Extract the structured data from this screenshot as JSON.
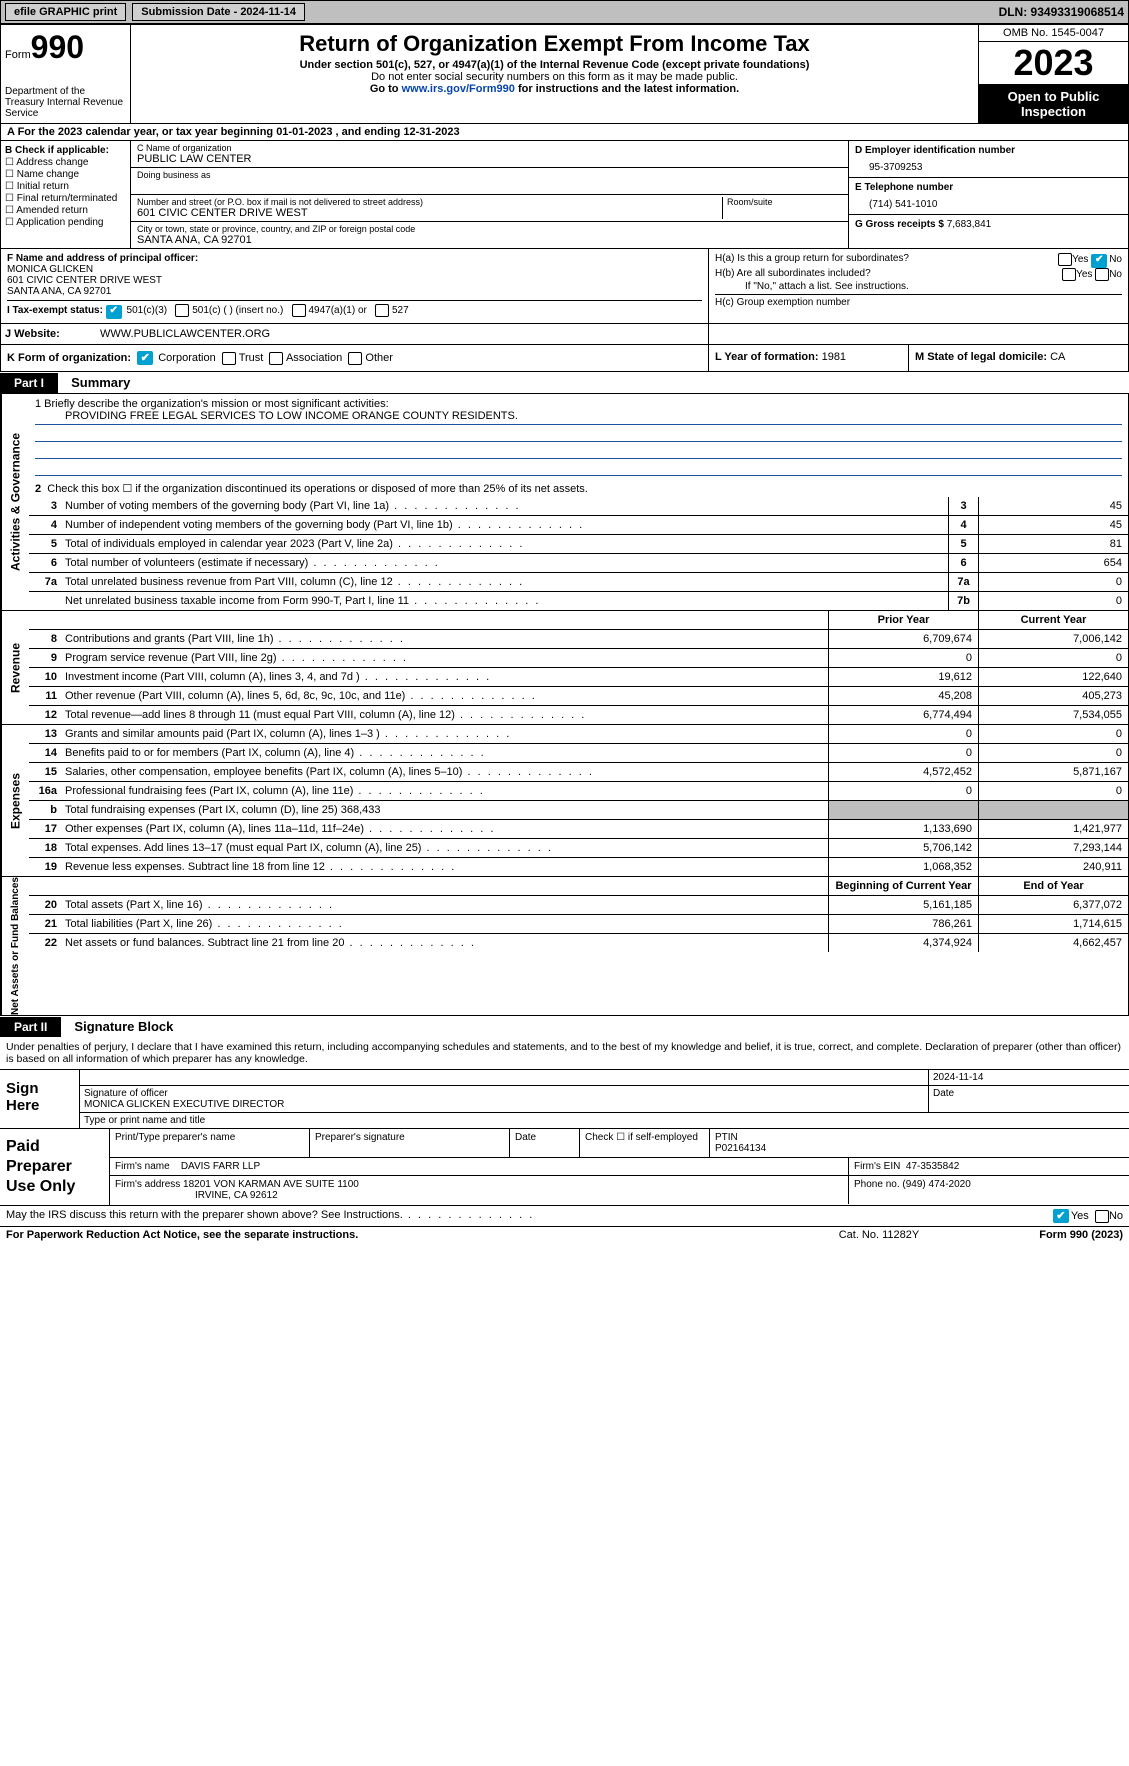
{
  "topbar": {
    "efile": "efile GRAPHIC print",
    "submission": "Submission Date - 2024-11-14",
    "dln": "DLN: 93493319068514"
  },
  "header": {
    "form_label": "Form",
    "form_no": "990",
    "dept": "Department of the Treasury Internal Revenue Service",
    "title": "Return of Organization Exempt From Income Tax",
    "sub1": "Under section 501(c), 527, or 4947(a)(1) of the Internal Revenue Code (except private foundations)",
    "sub2": "Do not enter social security numbers on this form as it may be made public.",
    "sub3_pre": "Go to ",
    "sub3_link": "www.irs.gov/Form990",
    "sub3_post": " for instructions and the latest information.",
    "omb": "OMB No. 1545-0047",
    "year": "2023",
    "inspect": "Open to Public Inspection"
  },
  "rowA": "A    For the 2023 calendar year, or tax year beginning 01-01-2023    , and ending 12-31-2023",
  "B": {
    "label": "B Check if applicable:",
    "items": [
      "Address change",
      "Name change",
      "Initial return",
      "Final return/terminated",
      "Amended return",
      "Application pending"
    ]
  },
  "C": {
    "name_lbl": "C Name of organization",
    "name": "PUBLIC LAW CENTER",
    "dba_lbl": "Doing business as",
    "street_lbl": "Number and street (or P.O. box if mail is not delivered to street address)",
    "street": "601 CIVIC CENTER DRIVE WEST",
    "room_lbl": "Room/suite",
    "city_lbl": "City or town, state or province, country, and ZIP or foreign postal code",
    "city": "SANTA ANA, CA  92701"
  },
  "D": {
    "lbl": "D Employer identification number",
    "val": "95-3709253"
  },
  "E": {
    "lbl": "E Telephone number",
    "val": "(714) 541-1010"
  },
  "G": {
    "lbl": "G Gross receipts $",
    "val": "7,683,841"
  },
  "F": {
    "lbl": "F   Name and address of principal officer:",
    "name": "MONICA GLICKEN",
    "addr1": "601 CIVIC CENTER DRIVE WEST",
    "addr2": "SANTA ANA, CA  92701"
  },
  "H": {
    "a": "H(a)  Is this a group return for subordinates?",
    "b": "H(b)  Are all subordinates included?",
    "note": "If \"No,\" attach a list. See instructions.",
    "c": "H(c)  Group exemption number"
  },
  "I": {
    "lbl": "I     Tax-exempt status:",
    "opts": [
      "501(c)(3)",
      "501(c) (  ) (insert no.)",
      "4947(a)(1) or",
      "527"
    ]
  },
  "J": {
    "lbl": "J     Website:",
    "val": "WWW.PUBLICLAWCENTER.ORG"
  },
  "K": {
    "lbl": "K Form of organization:",
    "opts": [
      "Corporation",
      "Trust",
      "Association",
      "Other"
    ]
  },
  "L": {
    "lbl": "L Year of formation:",
    "val": "1981"
  },
  "M": {
    "lbl": "M State of legal domicile:",
    "val": "CA"
  },
  "part1": {
    "hdr": "Part I",
    "title": "Summary"
  },
  "mission": {
    "lbl": "1   Briefly describe the organization's mission or most significant activities:",
    "text": "PROVIDING FREE LEGAL SERVICES TO LOW INCOME ORANGE COUNTY RESIDENTS."
  },
  "line2": "Check this box ☐ if the organization discontinued its operations or disposed of more than 25% of its net assets.",
  "governance": [
    {
      "n": "3",
      "d": "Number of voting members of the governing body (Part VI, line 1a)",
      "b": "3",
      "v": "45"
    },
    {
      "n": "4",
      "d": "Number of independent voting members of the governing body (Part VI, line 1b)",
      "b": "4",
      "v": "45"
    },
    {
      "n": "5",
      "d": "Total of individuals employed in calendar year 2023 (Part V, line 2a)",
      "b": "5",
      "v": "81"
    },
    {
      "n": "6",
      "d": "Total number of volunteers (estimate if necessary)",
      "b": "6",
      "v": "654"
    },
    {
      "n": "7a",
      "d": "Total unrelated business revenue from Part VIII, column (C), line 12",
      "b": "7a",
      "v": "0"
    },
    {
      "n": "",
      "d": "Net unrelated business taxable income from Form 990-T, Part I, line 11",
      "b": "7b",
      "v": "0"
    }
  ],
  "col_headers": {
    "prior": "Prior Year",
    "current": "Current Year",
    "beg": "Beginning of Current Year",
    "end": "End of Year"
  },
  "revenue": [
    {
      "n": "8",
      "d": "Contributions and grants (Part VIII, line 1h)",
      "p": "6,709,674",
      "c": "7,006,142"
    },
    {
      "n": "9",
      "d": "Program service revenue (Part VIII, line 2g)",
      "p": "0",
      "c": "0"
    },
    {
      "n": "10",
      "d": "Investment income (Part VIII, column (A), lines 3, 4, and 7d )",
      "p": "19,612",
      "c": "122,640"
    },
    {
      "n": "11",
      "d": "Other revenue (Part VIII, column (A), lines 5, 6d, 8c, 9c, 10c, and 11e)",
      "p": "45,208",
      "c": "405,273"
    },
    {
      "n": "12",
      "d": "Total revenue—add lines 8 through 11 (must equal Part VIII, column (A), line 12)",
      "p": "6,774,494",
      "c": "7,534,055"
    }
  ],
  "expenses": [
    {
      "n": "13",
      "d": "Grants and similar amounts paid (Part IX, column (A), lines 1–3 )",
      "p": "0",
      "c": "0"
    },
    {
      "n": "14",
      "d": "Benefits paid to or for members (Part IX, column (A), line 4)",
      "p": "0",
      "c": "0"
    },
    {
      "n": "15",
      "d": "Salaries, other compensation, employee benefits (Part IX, column (A), lines 5–10)",
      "p": "4,572,452",
      "c": "5,871,167"
    },
    {
      "n": "16a",
      "d": "Professional fundraising fees (Part IX, column (A), line 11e)",
      "p": "0",
      "c": "0"
    },
    {
      "n": "b",
      "d": "Total fundraising expenses (Part IX, column (D), line 25) 368,433",
      "p": "",
      "c": "",
      "grey": true
    },
    {
      "n": "17",
      "d": "Other expenses (Part IX, column (A), lines 11a–11d, 11f–24e)",
      "p": "1,133,690",
      "c": "1,421,977"
    },
    {
      "n": "18",
      "d": "Total expenses. Add lines 13–17 (must equal Part IX, column (A), line 25)",
      "p": "5,706,142",
      "c": "7,293,144"
    },
    {
      "n": "19",
      "d": "Revenue less expenses. Subtract line 18 from line 12",
      "p": "1,068,352",
      "c": "240,911"
    }
  ],
  "netassets": [
    {
      "n": "20",
      "d": "Total assets (Part X, line 16)",
      "p": "5,161,185",
      "c": "6,377,072"
    },
    {
      "n": "21",
      "d": "Total liabilities (Part X, line 26)",
      "p": "786,261",
      "c": "1,714,615"
    },
    {
      "n": "22",
      "d": "Net assets or fund balances. Subtract line 21 from line 20",
      "p": "4,374,924",
      "c": "4,662,457"
    }
  ],
  "vtabs": {
    "gov": "Activities & Governance",
    "rev": "Revenue",
    "exp": "Expenses",
    "net": "Net Assets or Fund Balances"
  },
  "part2": {
    "hdr": "Part II",
    "title": "Signature Block"
  },
  "sig_decl": "Under penalties of perjury, I declare that I have examined this return, including accompanying schedules and statements, and to the best of my knowledge and belief, it is true, correct, and complete. Declaration of preparer (other than officer) is based on all information of which preparer has any knowledge.",
  "sign": {
    "label": "Sign Here",
    "sig_lbl": "Signature of officer",
    "name": "MONICA GLICKEN  EXECUTIVE DIRECTOR",
    "date_lbl": "Date",
    "date": "2024-11-14",
    "type_lbl": "Type or print name and title"
  },
  "prep": {
    "label": "Paid Preparer Use Only",
    "r1": {
      "name_lbl": "Print/Type preparer's name",
      "sig_lbl": "Preparer's signature",
      "date_lbl": "Date",
      "se_lbl": "Check ☐ if self-employed",
      "ptin_lbl": "PTIN",
      "ptin": "P02164134"
    },
    "r2": {
      "firm_lbl": "Firm's name",
      "firm": "DAVIS FARR LLP",
      "ein_lbl": "Firm's EIN",
      "ein": "47-3535842"
    },
    "r3": {
      "addr_lbl": "Firm's address",
      "addr1": "18201 VON KARMAN AVE SUITE 1100",
      "addr2": "IRVINE, CA  92612",
      "ph_lbl": "Phone no.",
      "ph": "(949) 474-2020"
    }
  },
  "footer": {
    "q": "May the IRS discuss this return with the preparer shown above? See Instructions.",
    "yes": "Yes",
    "no": "No",
    "pra": "For Paperwork Reduction Act Notice, see the separate instructions.",
    "cat": "Cat. No. 11282Y",
    "form": "Form 990 (2023)"
  }
}
